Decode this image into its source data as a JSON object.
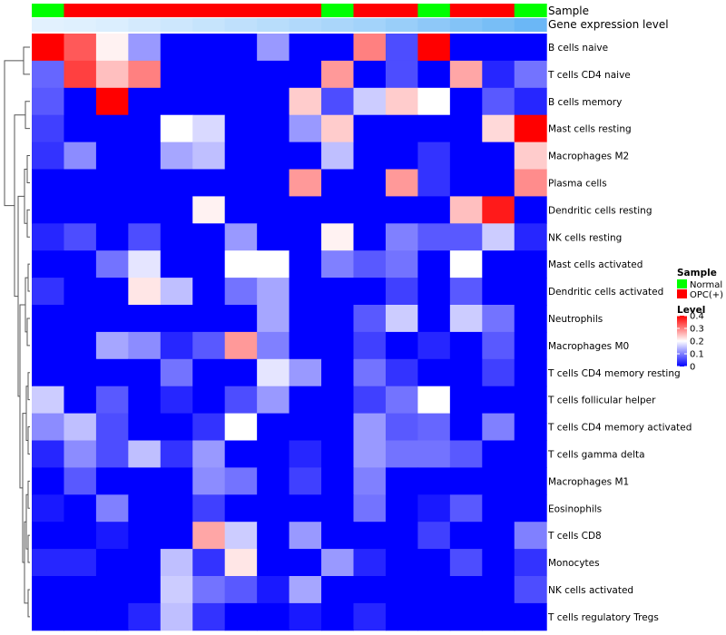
{
  "chart_data": {
    "type": "heatmap",
    "annotation_rows": [
      {
        "label": "Sample",
        "values": [
          "Normal",
          "OPC(+)",
          "OPC(+)",
          "OPC(+)",
          "OPC(+)",
          "OPC(+)",
          "OPC(+)",
          "OPC(+)",
          "OPC(+)",
          "Normal",
          "OPC(+)",
          "OPC(+)",
          "Normal",
          "OPC(+)",
          "OPC(+)",
          "Normal"
        ]
      },
      {
        "label": "Gene expression level",
        "values": [
          0.1,
          0.12,
          0.15,
          0.2,
          0.25,
          0.3,
          0.35,
          0.4,
          0.45,
          0.5,
          0.55,
          0.62,
          0.7,
          0.78,
          0.86,
          0.95
        ]
      }
    ],
    "rows": [
      "B cells naive",
      "T cells CD4 naive",
      "B cells memory",
      "Mast cells resting",
      "Macrophages M2",
      "Plasma cells",
      "Dendritic cells resting",
      "NK cells resting",
      "Mast cells activated",
      "Dendritic cells activated",
      "Neutrophils",
      "Macrophages M0",
      "T cells CD4 memory resting",
      "T cells follicular helper",
      "T cells CD4 memory activated",
      "T cells gamma delta",
      "Macrophages M1",
      "Eosinophils",
      "T cells CD8",
      "Monocytes",
      "NK cells activated",
      "T cells regulatory  Tregs"
    ],
    "values": [
      [
        0.4,
        0.33,
        0.21,
        0.12,
        0.0,
        0.0,
        0.0,
        0.12,
        0.0,
        0.0,
        0.3,
        0.06,
        0.4,
        0.0,
        0.0,
        0.0
      ],
      [
        0.08,
        0.35,
        0.25,
        0.3,
        0.0,
        0.0,
        0.0,
        0.0,
        0.0,
        0.28,
        0.0,
        0.06,
        0.0,
        0.27,
        0.03,
        0.09
      ],
      [
        0.07,
        0.0,
        0.4,
        0.0,
        0.0,
        0.0,
        0.0,
        0.0,
        0.24,
        0.06,
        0.16,
        0.24,
        0.2,
        0.0,
        0.07,
        0.03
      ],
      [
        0.05,
        0.0,
        0.0,
        0.0,
        0.2,
        0.17,
        0.0,
        0.0,
        0.12,
        0.24,
        0.0,
        0.0,
        0.0,
        0.0,
        0.23,
        0.4
      ],
      [
        0.04,
        0.11,
        0.0,
        0.0,
        0.13,
        0.15,
        0.0,
        0.0,
        0.0,
        0.15,
        0.0,
        0.0,
        0.04,
        0.0,
        0.0,
        0.24
      ],
      [
        0.0,
        0.0,
        0.0,
        0.0,
        0.0,
        0.0,
        0.0,
        0.0,
        0.28,
        0.0,
        0.0,
        0.28,
        0.04,
        0.0,
        0.0,
        0.29
      ],
      [
        0.0,
        0.0,
        0.0,
        0.0,
        0.0,
        0.21,
        0.0,
        0.0,
        0.0,
        0.0,
        0.0,
        0.0,
        0.0,
        0.25,
        0.38,
        0.0
      ],
      [
        0.03,
        0.06,
        0.0,
        0.06,
        0.0,
        0.0,
        0.12,
        0.0,
        0.0,
        0.21,
        0.0,
        0.1,
        0.07,
        0.07,
        0.16,
        0.03
      ],
      [
        0.0,
        0.0,
        0.09,
        0.18,
        0.0,
        0.0,
        0.2,
        0.2,
        0.0,
        0.1,
        0.07,
        0.09,
        0.0,
        0.2,
        0.0,
        0.0
      ],
      [
        0.04,
        0.0,
        0.0,
        0.22,
        0.15,
        0.0,
        0.09,
        0.13,
        0.0,
        0.0,
        0.0,
        0.05,
        0.0,
        0.07,
        0.0,
        0.0
      ],
      [
        0.0,
        0.0,
        0.0,
        0.0,
        0.0,
        0.0,
        0.0,
        0.13,
        0.0,
        0.0,
        0.07,
        0.16,
        0.0,
        0.16,
        0.09,
        0.0
      ],
      [
        0.0,
        0.0,
        0.13,
        0.11,
        0.03,
        0.07,
        0.28,
        0.1,
        0.0,
        0.0,
        0.05,
        0.0,
        0.03,
        0.0,
        0.07,
        0.0
      ],
      [
        0.0,
        0.0,
        0.0,
        0.0,
        0.09,
        0.0,
        0.0,
        0.18,
        0.12,
        0.0,
        0.09,
        0.04,
        0.0,
        0.0,
        0.05,
        0.0
      ],
      [
        0.16,
        0.0,
        0.07,
        0.0,
        0.03,
        0.0,
        0.06,
        0.12,
        0.0,
        0.0,
        0.05,
        0.09,
        0.2,
        0.0,
        0.0,
        0.0
      ],
      [
        0.11,
        0.15,
        0.06,
        0.0,
        0.0,
        0.04,
        0.2,
        0.0,
        0.0,
        0.0,
        0.12,
        0.07,
        0.08,
        0.0,
        0.1,
        0.0
      ],
      [
        0.03,
        0.11,
        0.06,
        0.15,
        0.04,
        0.12,
        0.0,
        0.0,
        0.03,
        0.0,
        0.12,
        0.09,
        0.09,
        0.07,
        0.0,
        0.0
      ],
      [
        0.0,
        0.07,
        0.0,
        0.0,
        0.0,
        0.11,
        0.09,
        0.0,
        0.05,
        0.0,
        0.1,
        0.0,
        0.0,
        0.0,
        0.0,
        0.0
      ],
      [
        0.02,
        0.0,
        0.1,
        0.0,
        0.0,
        0.05,
        0.0,
        0.0,
        0.0,
        0.0,
        0.09,
        0.0,
        0.02,
        0.07,
        0.0,
        0.0
      ],
      [
        0.0,
        0.0,
        0.02,
        0.0,
        0.0,
        0.27,
        0.16,
        0.0,
        0.12,
        0.0,
        0.0,
        0.0,
        0.05,
        0.0,
        0.0,
        0.1
      ],
      [
        0.03,
        0.03,
        0.0,
        0.0,
        0.15,
        0.04,
        0.22,
        0.0,
        0.0,
        0.12,
        0.03,
        0.0,
        0.0,
        0.06,
        0.0,
        0.04
      ],
      [
        0.0,
        0.0,
        0.0,
        0.0,
        0.16,
        0.09,
        0.07,
        0.02,
        0.13,
        0.0,
        0.0,
        0.0,
        0.0,
        0.0,
        0.0,
        0.06
      ],
      [
        0.0,
        0.0,
        0.0,
        0.03,
        0.15,
        0.04,
        0.0,
        0.0,
        0.02,
        0.0,
        0.03,
        0.0,
        0.0,
        0.0,
        0.0,
        0.0
      ]
    ],
    "value_range": [
      0,
      0.4
    ],
    "colors": {
      "low": "#0000ff",
      "mid": "#ffffff",
      "high": "#ff0000",
      "normal": "#00ff00",
      "opc": "#ff0000"
    },
    "legend": {
      "sample_title": "Sample",
      "sample_items": [
        {
          "label": "Normal",
          "color": "#00ff00"
        },
        {
          "label": "OPC(+)",
          "color": "#ff0000"
        }
      ],
      "level_title": "Level",
      "level_ticks": [
        "0.4",
        "0.3",
        "0.2",
        "0.1",
        "0"
      ]
    },
    "row_dendrogram": true
  }
}
